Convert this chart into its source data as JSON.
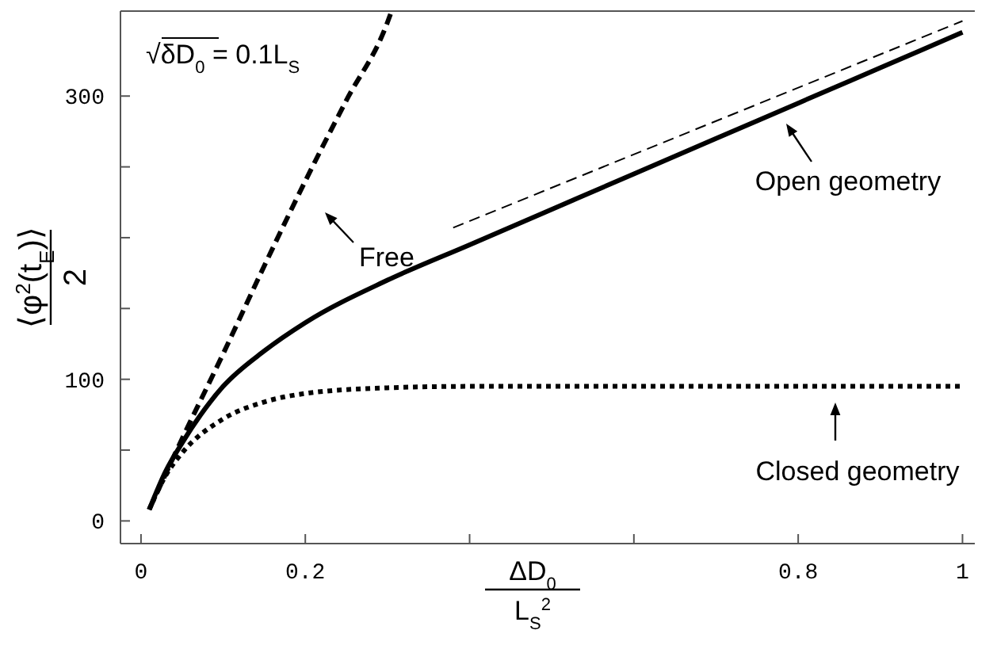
{
  "chart_data": {
    "type": "line",
    "xlabel": "ΔD$_{0}$\nL$_{S}$$^{2}$",
    "ylabel": "⟨φ$^{2}$(t$_{E}$)⟩\n2",
    "xlim": [
      -0.025,
      1.015
    ],
    "ylim": [
      -16,
      360
    ],
    "xticks": [
      0,
      0.2,
      {
        "value": 0.4,
        "label": null
      },
      {
        "value": 0.6,
        "label": null
      },
      0.8,
      1
    ],
    "yticks": [
      0,
      {
        "value": 50,
        "label": null
      },
      100,
      {
        "value": 150,
        "label": null
      },
      {
        "value": 200,
        "label": null
      },
      {
        "value": 250,
        "label": null
      },
      300
    ],
    "grid": false,
    "legend": "right",
    "marker": "none",
    "series": [
      {
        "name": "Free",
        "color": "#000000",
        "line_style": "dashed",
        "x": [
          0.01,
          0.05,
          0.1,
          0.15,
          0.2,
          0.25,
          0.3,
          0.305
        ],
        "values": [
          8,
          58,
          118,
          180,
          240,
          297,
          352,
          360
        ]
      },
      {
        "name": "Open geometry",
        "color": "#000000",
        "line_style": "solid",
        "x": [
          0.01,
          0.03,
          0.05,
          0.1,
          0.15,
          0.2,
          0.3,
          0.4,
          0.5,
          0.6,
          0.7,
          0.8,
          0.9,
          1
        ],
        "values": [
          8,
          35,
          55,
          95,
          120,
          140,
          170,
          195,
          220,
          245,
          270,
          295,
          320,
          345
        ]
      },
      {
        "name": "Closed geometry",
        "color": "#000000",
        "line_style": "dotted",
        "x": [
          0.01,
          0.03,
          0.05,
          0.1,
          0.15,
          0.2,
          0.3,
          0.4,
          0.6,
          0.8,
          1
        ],
        "values": [
          8,
          32,
          48,
          72,
          84,
          90,
          94,
          95,
          95,
          95,
          95
        ]
      },
      {
        "color": "#000000",
        "line_style": "dashed",
        "x": [
          0.38,
          1
        ],
        "values": [
          207,
          353
        ]
      }
    ],
    "annotations": [
      "√δD$_{0}$ = 0.1L$_{S}$"
    ]
  }
}
